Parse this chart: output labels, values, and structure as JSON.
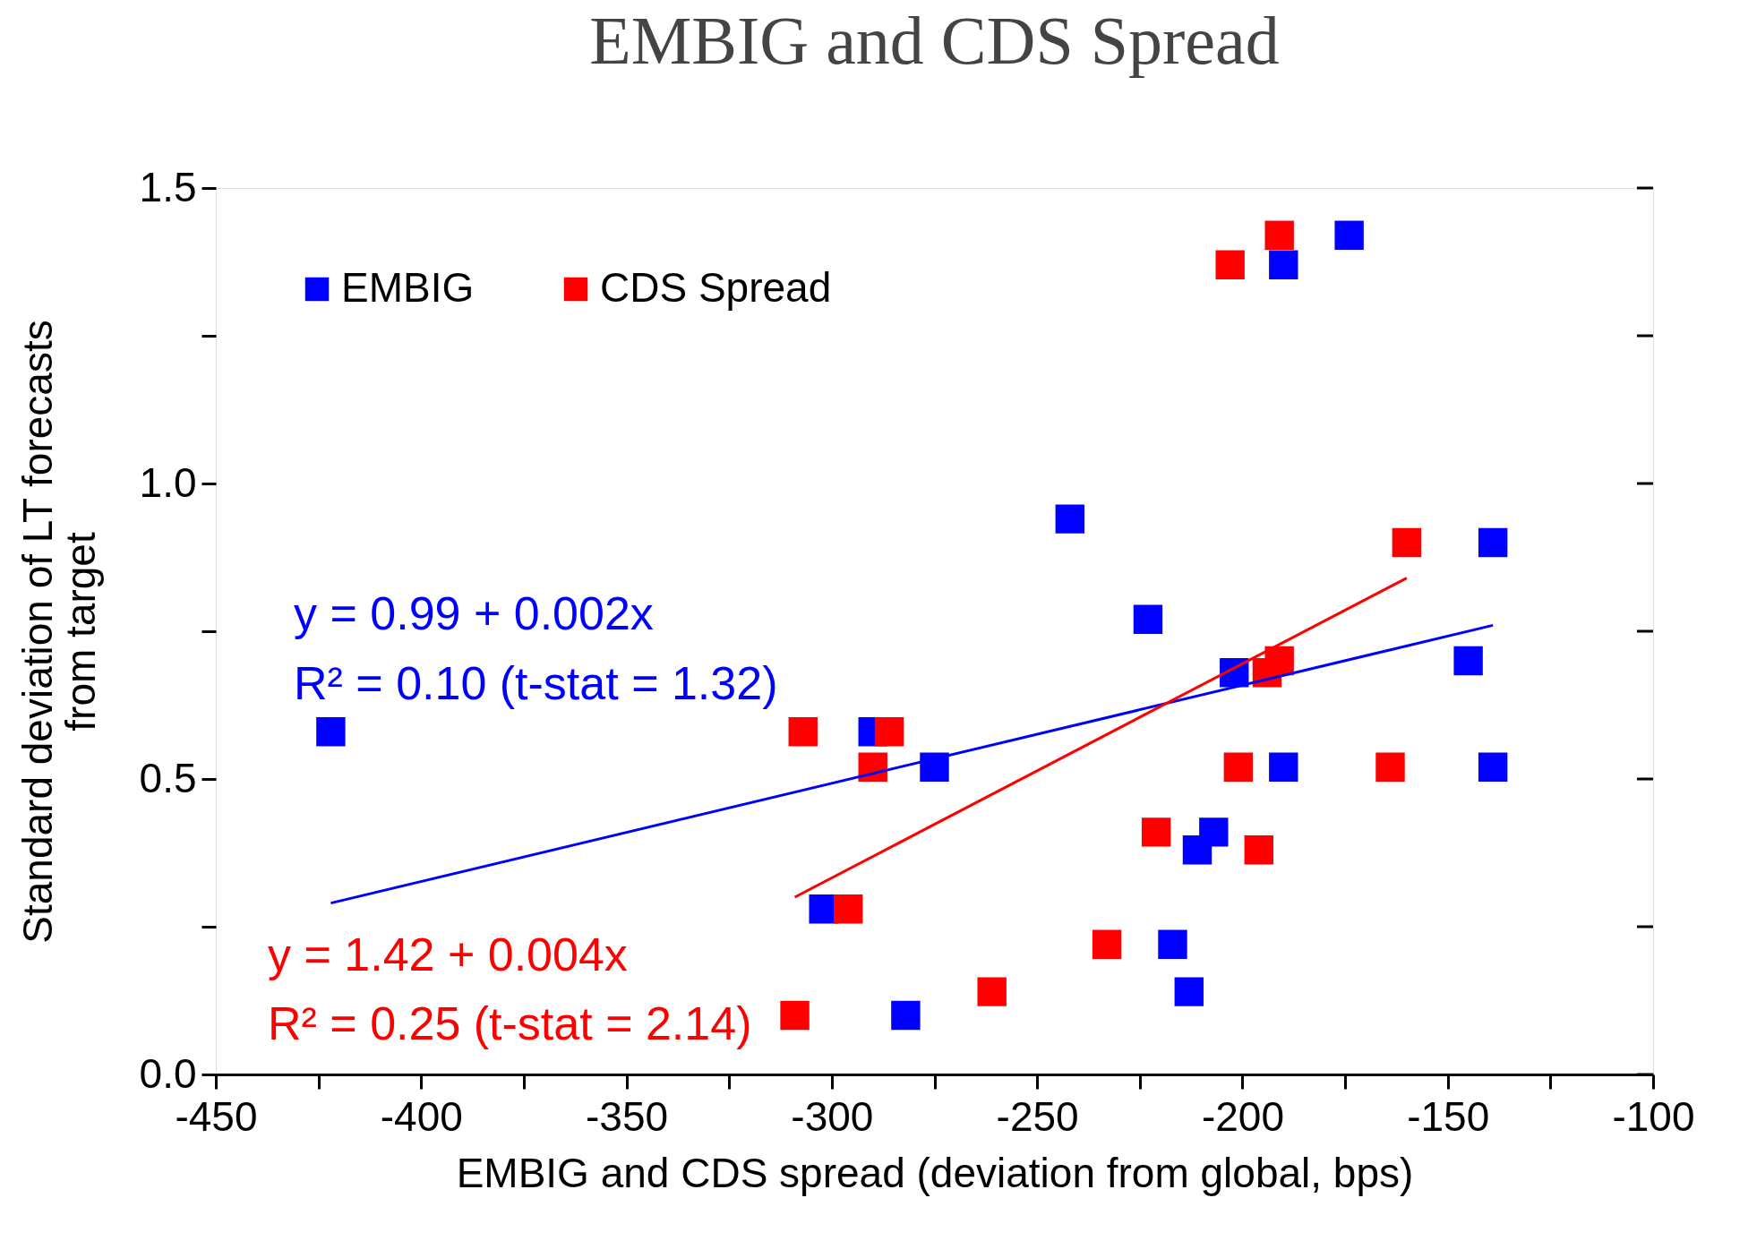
{
  "chart_data": {
    "type": "scatter",
    "title": "EMBIG and CDS Spread",
    "xlabel": "EMBIG and CDS spread (deviation from global, bps)",
    "ylabel": "Standard deviation of LT forecasts\nfrom target",
    "xlim": [
      -450,
      -100
    ],
    "xticks": [
      -450,
      {
        "value": -425,
        "label": null
      },
      -400,
      {
        "value": -375,
        "label": null
      },
      -350,
      {
        "value": -325,
        "label": null
      },
      -300,
      {
        "value": -275,
        "label": null
      },
      -250,
      {
        "value": -225,
        "label": null
      },
      -200,
      {
        "value": -175,
        "label": null
      },
      -150,
      {
        "value": -125,
        "label": null
      },
      -100
    ],
    "ylim": [
      0,
      1.5
    ],
    "yticks": [
      {
        "value": 0,
        "label": "0.0"
      },
      {
        "value": 0.25,
        "label": null
      },
      0.5,
      {
        "value": 0.75,
        "label": null
      },
      {
        "value": 1,
        "label": "1.0"
      },
      {
        "value": 1.25,
        "label": null
      },
      1.5
    ],
    "marker": "square",
    "grid": false,
    "legend": "top left",
    "series": [
      {
        "name": "EMBIG",
        "color": "#0000ff",
        "x": [
          -422,
          -302,
          -290,
          -282,
          -275,
          -242,
          -223,
          -217,
          -213,
          -211,
          -207,
          -202,
          -190,
          -190,
          -174,
          -145,
          -139,
          -139
        ],
        "values": [
          0.58,
          0.28,
          0.58,
          0.1,
          0.52,
          0.94,
          0.77,
          0.22,
          0.14,
          0.38,
          0.41,
          0.68,
          1.37,
          0.52,
          1.42,
          0.7,
          0.9,
          0.52
        ]
      },
      {
        "name": "CDS Spread",
        "color": "#ff0000",
        "x": [
          -309,
          -307,
          -296,
          -290,
          -286,
          -261,
          -233,
          -221,
          -203,
          -201,
          -196,
          -194,
          -191,
          -191,
          -164,
          -160
        ],
        "values": [
          0.1,
          0.58,
          0.28,
          0.52,
          0.58,
          0.14,
          0.22,
          0.41,
          1.37,
          0.52,
          0.38,
          0.68,
          0.7,
          1.42,
          0.52,
          0.9
        ]
      },
      {
        "type": "line",
        "marker": "none",
        "color": "#0000ff",
        "x": [
          -422,
          -139
        ],
        "values": [
          0.29,
          0.76
        ]
      },
      {
        "type": "line",
        "marker": "none",
        "color": "#ff0000",
        "x": [
          -309,
          -160
        ],
        "values": [
          0.3,
          0.84
        ]
      }
    ],
    "annotations": [
      "y = 0.99 + 0.002x",
      "R² = 0.10 (t-stat = 1.32)",
      "y = 1.42 + 0.004x",
      "R² = 0.25 (t-stat = 2.14)"
    ]
  }
}
